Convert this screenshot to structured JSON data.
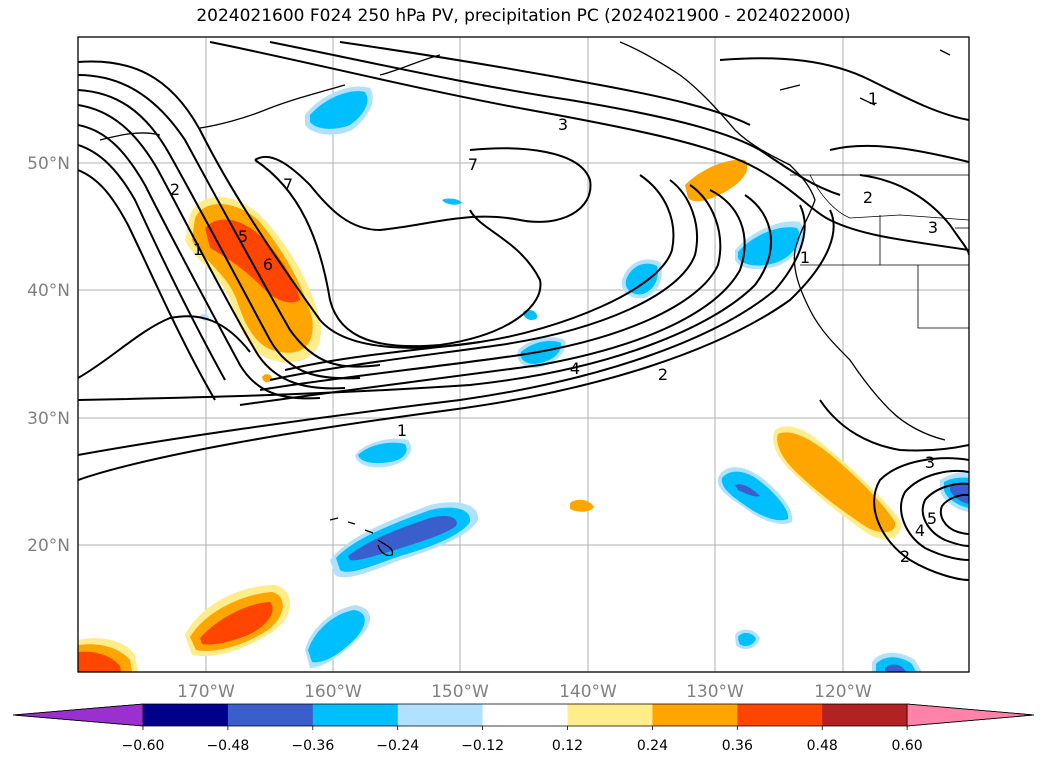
{
  "figure": {
    "title": "2024021600 F024 250 hPa PV, precipitation PC (2024021900 - 2024022000)"
  },
  "axes": {
    "lat_labels": [
      "50°N",
      "40°N",
      "30°N",
      "20°N"
    ],
    "lon_labels": [
      "170°W",
      "160°W",
      "150°W",
      "140°W",
      "130°W",
      "120°W"
    ]
  },
  "colorbar": {
    "ticks": [
      "−0.60",
      "−0.48",
      "−0.36",
      "−0.24",
      "−0.12",
      "0.12",
      "0.24",
      "0.36",
      "0.48",
      "0.60"
    ],
    "colors": [
      "#9b30d0",
      "#00008b",
      "#3a5fcd",
      "#00bfff",
      "#b0e2ff",
      "#ffffff",
      "#ffec8b",
      "#ffa500",
      "#ff4500",
      "#b22222",
      "#ff82ab"
    ]
  },
  "contour_labels": [
    "1",
    "2",
    "3",
    "4",
    "5",
    "6",
    "7"
  ],
  "map_labels": [
    {
      "text": "2"
    },
    {
      "text": "1"
    },
    {
      "text": "5"
    },
    {
      "text": "6"
    },
    {
      "text": "7"
    },
    {
      "text": "7"
    },
    {
      "text": "3"
    },
    {
      "text": "4"
    },
    {
      "text": "2"
    },
    {
      "text": "1"
    },
    {
      "text": "1"
    },
    {
      "text": "2"
    },
    {
      "text": "3"
    },
    {
      "text": "1"
    },
    {
      "text": "3"
    },
    {
      "text": "4"
    },
    {
      "text": "5"
    },
    {
      "text": "2"
    }
  ]
}
